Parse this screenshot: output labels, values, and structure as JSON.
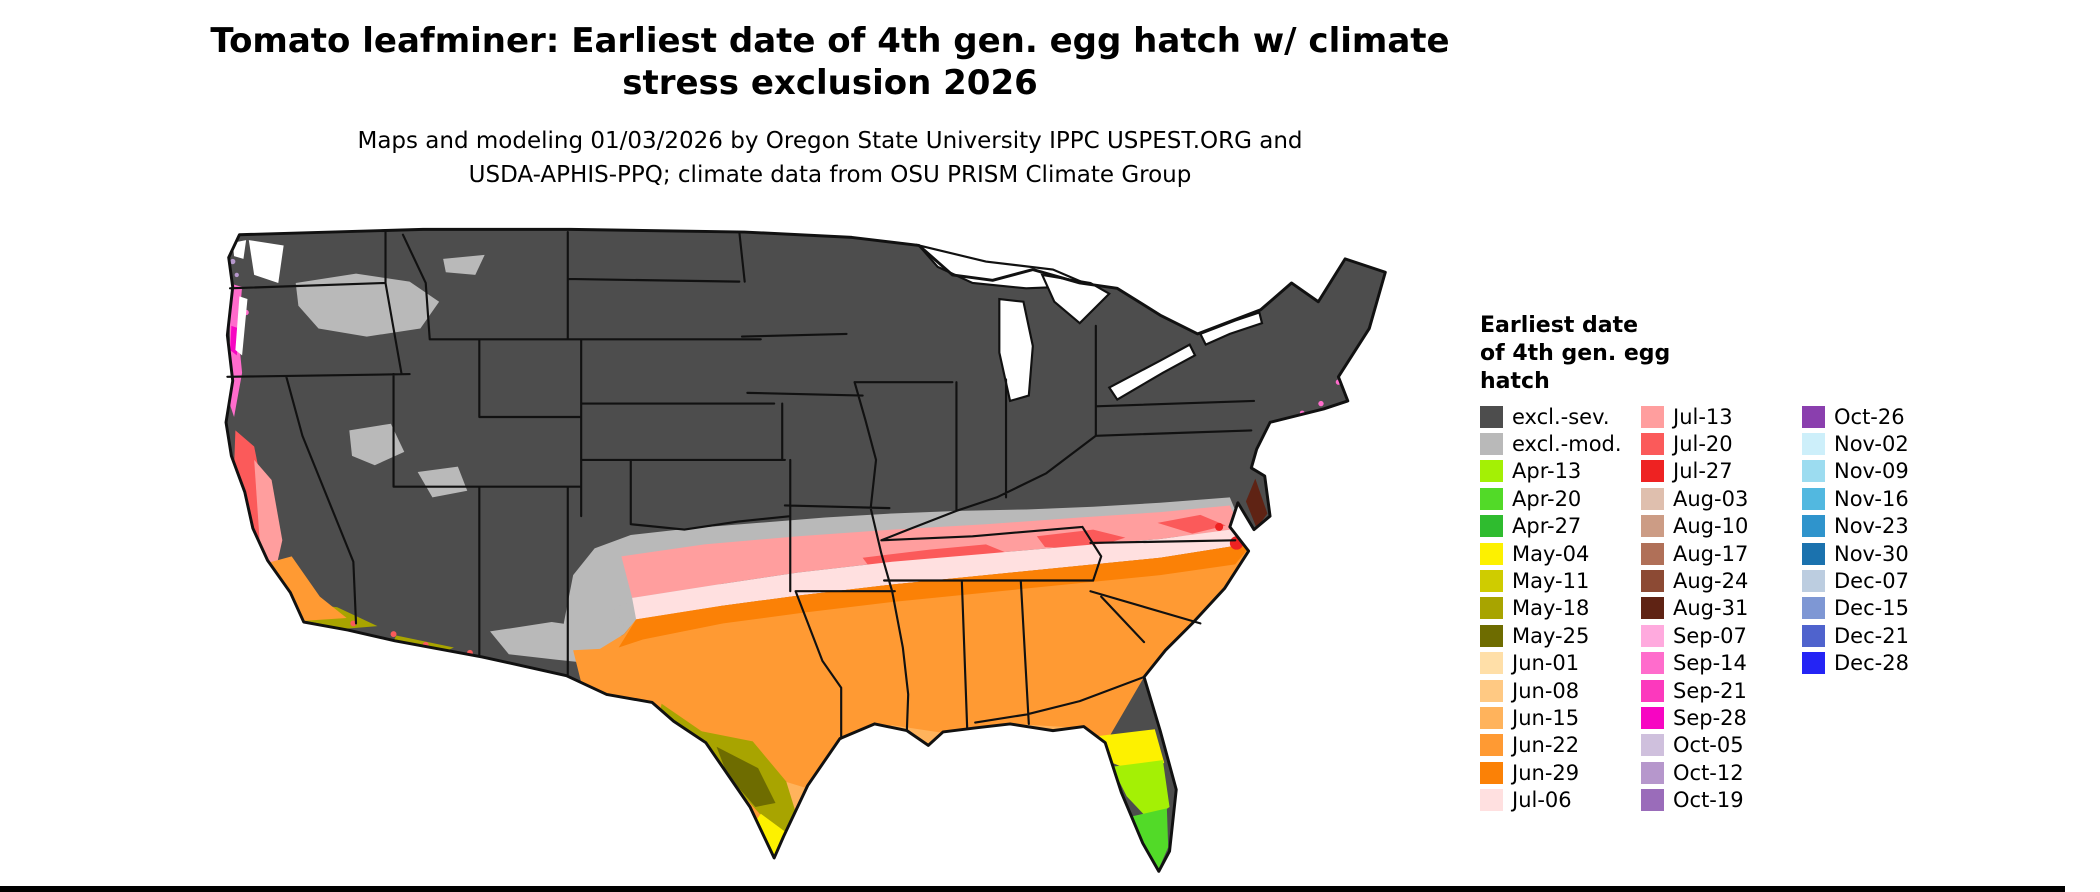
{
  "header": {
    "title_line1": "Tomato leafminer: Earliest date of 4th gen. egg hatch w/ climate",
    "title_line2": "stress exclusion 2026",
    "subtitle_line1": "Maps and modeling 01/03/2026 by Oregon State University IPPC USPEST.ORG and",
    "subtitle_line2": "USDA-APHIS-PPQ; climate data from OSU PRISM Climate Group"
  },
  "legend": {
    "title_lines": [
      "Earliest date",
      "of 4th gen. egg",
      "hatch"
    ],
    "columns": [
      [
        {
          "label": "excl.-sev.",
          "color": "#4d4d4d"
        },
        {
          "label": "excl.-mod.",
          "color": "#b9b9b9"
        },
        {
          "label": "Apr-13",
          "color": "#a4f005"
        },
        {
          "label": "Apr-20",
          "color": "#52da28"
        },
        {
          "label": "Apr-27",
          "color": "#2fbc2f"
        },
        {
          "label": "May-04",
          "color": "#fdf100"
        },
        {
          "label": "May-11",
          "color": "#cfcc00"
        },
        {
          "label": "May-18",
          "color": "#a8a400"
        },
        {
          "label": "May-25",
          "color": "#6e6c00"
        },
        {
          "label": "Jun-01",
          "color": "#ffdfa8"
        },
        {
          "label": "Jun-08",
          "color": "#ffc983"
        },
        {
          "label": "Jun-15",
          "color": "#ffb35c"
        },
        {
          "label": "Jun-22",
          "color": "#ff9a33"
        },
        {
          "label": "Jun-29",
          "color": "#fb8106"
        },
        {
          "label": "Jul-06",
          "color": "#ffe0e0"
        }
      ],
      [
        {
          "label": "Jul-13",
          "color": "#ff9e9e"
        },
        {
          "label": "Jul-20",
          "color": "#fb5a5a"
        },
        {
          "label": "Jul-27",
          "color": "#ee2222"
        },
        {
          "label": "Aug-03",
          "color": "#dfbfae"
        },
        {
          "label": "Aug-10",
          "color": "#cc9c85"
        },
        {
          "label": "Aug-17",
          "color": "#b07058"
        },
        {
          "label": "Aug-24",
          "color": "#8c4a34"
        },
        {
          "label": "Aug-31",
          "color": "#5f2314"
        },
        {
          "label": "Sep-07",
          "color": "#ffaade"
        },
        {
          "label": "Sep-14",
          "color": "#ff6ccc"
        },
        {
          "label": "Sep-21",
          "color": "#fc39bd"
        },
        {
          "label": "Sep-28",
          "color": "#f705c2"
        },
        {
          "label": "Oct-05",
          "color": "#cfc0dd"
        },
        {
          "label": "Oct-12",
          "color": "#b697cc"
        },
        {
          "label": "Oct-19",
          "color": "#9a6cba"
        }
      ],
      [
        {
          "label": "Oct-26",
          "color": "#8a3fae"
        },
        {
          "label": "Nov-02",
          "color": "#cdeffa"
        },
        {
          "label": "Nov-09",
          "color": "#9cdcf0"
        },
        {
          "label": "Nov-16",
          "color": "#52b8e0"
        },
        {
          "label": "Nov-23",
          "color": "#2f94cc"
        },
        {
          "label": "Nov-30",
          "color": "#1b72ae"
        },
        {
          "label": "Dec-07",
          "color": "#bccde0"
        },
        {
          "label": "Dec-15",
          "color": "#7e97d4"
        },
        {
          "label": "Dec-21",
          "color": "#4f63cd"
        },
        {
          "label": "Dec-28",
          "color": "#2424f5"
        }
      ]
    ]
  }
}
